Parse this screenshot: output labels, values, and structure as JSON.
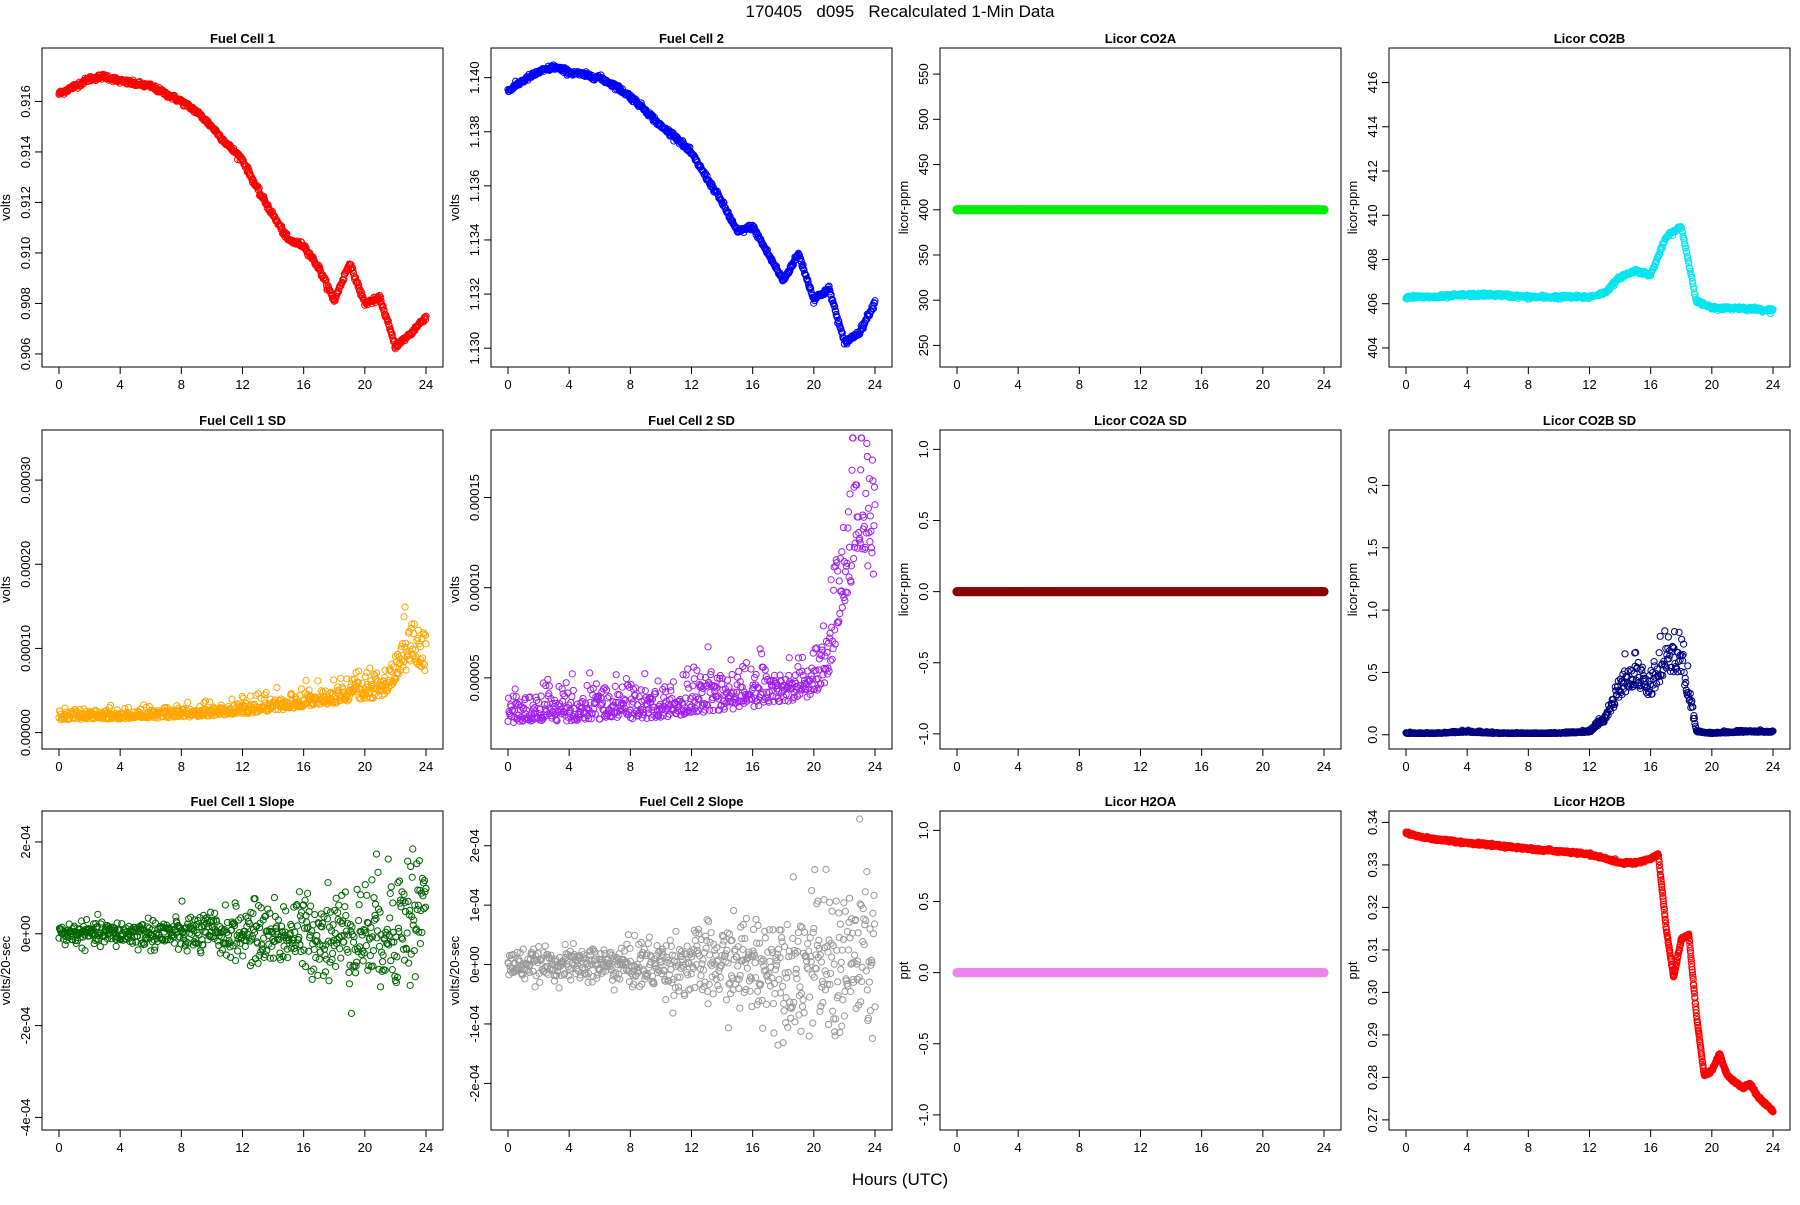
{
  "figure": {
    "title": "170405   d095   Recalculated 1-Min Data",
    "xlabel": "Hours (UTC)"
  },
  "chart_data": [
    {
      "type": "scatter",
      "title": "Fuel Cell 1",
      "xlabel": "",
      "ylabel": "volts",
      "xlim": [
        0,
        24
      ],
      "ylim": [
        0.9058,
        0.9178
      ],
      "xticks": [
        "0",
        "4",
        "8",
        "12",
        "16",
        "20",
        "24"
      ],
      "yticks": [
        "0.906",
        "0.908",
        "0.910",
        "0.912",
        "0.914",
        "0.916"
      ],
      "color": "#ff0000",
      "grid": false,
      "series": [
        {
          "x": [
            0,
            1,
            2,
            3,
            4,
            5,
            6,
            7,
            8,
            9,
            10,
            11,
            12,
            13,
            14,
            15,
            16,
            17,
            18,
            19,
            20,
            21,
            22,
            23,
            24
          ],
          "y": [
            0.9163,
            0.9166,
            0.9169,
            0.917,
            0.9168,
            0.9167,
            0.9166,
            0.9163,
            0.916,
            0.9156,
            0.915,
            0.9143,
            0.9137,
            0.9125,
            0.9115,
            0.9105,
            0.9103,
            0.9094,
            0.9081,
            0.9096,
            0.908,
            0.9082,
            0.9063,
            0.9068,
            0.9075
          ]
        }
      ]
    },
    {
      "type": "scatter",
      "title": "Fuel Cell 2",
      "xlabel": "",
      "ylabel": "volts",
      "xlim": [
        0,
        24
      ],
      "ylim": [
        1.1296,
        1.1408
      ],
      "xticks": [
        "0",
        "4",
        "8",
        "12",
        "16",
        "20",
        "24"
      ],
      "yticks": [
        "1.130",
        "1.132",
        "1.134",
        "1.136",
        "1.138",
        "1.140"
      ],
      "color": "#0000ff",
      "grid": false,
      "series": [
        {
          "x": [
            0,
            1,
            2,
            3,
            4,
            5,
            6,
            7,
            8,
            9,
            10,
            11,
            12,
            13,
            14,
            15,
            16,
            17,
            18,
            19,
            20,
            21,
            22,
            23,
            24
          ],
          "y": [
            1.1395,
            1.1399,
            1.1402,
            1.1404,
            1.1402,
            1.1401,
            1.14,
            1.1397,
            1.1393,
            1.1388,
            1.1382,
            1.1378,
            1.1372,
            1.1363,
            1.1354,
            1.1343,
            1.1345,
            1.1335,
            1.1325,
            1.1335,
            1.1318,
            1.1322,
            1.1302,
            1.1306,
            1.1317
          ]
        }
      ]
    },
    {
      "type": "scatter",
      "title": "Licor CO2A",
      "xlabel": "",
      "ylabel": "licor-ppm",
      "xlim": [
        0,
        24
      ],
      "ylim": [
        235,
        570
      ],
      "xticks": [
        "0",
        "4",
        "8",
        "12",
        "16",
        "20",
        "24"
      ],
      "yticks": [
        "250",
        "300",
        "350",
        "400",
        "450",
        "500",
        "550"
      ],
      "color": "#00ee00",
      "grid": false,
      "series": [
        {
          "x": [
            0,
            24
          ],
          "y": [
            400,
            400
          ]
        }
      ]
    },
    {
      "type": "scatter",
      "title": "Licor CO2B",
      "xlabel": "",
      "ylabel": "licor-ppm",
      "xlim": [
        0,
        24
      ],
      "ylim": [
        403.5,
        417.2
      ],
      "xticks": [
        "0",
        "4",
        "8",
        "12",
        "16",
        "20",
        "24"
      ],
      "yticks": [
        "404",
        "406",
        "408",
        "410",
        "412",
        "414",
        "416"
      ],
      "color": "#00e5ee",
      "grid": false,
      "series": [
        {
          "x": [
            0,
            2,
            4,
            6,
            8,
            10,
            12,
            13,
            14,
            15,
            16,
            17,
            18,
            19,
            20,
            22,
            24
          ],
          "y": [
            406.3,
            406.3,
            406.4,
            406.4,
            406.3,
            406.3,
            406.3,
            406.5,
            407.2,
            407.5,
            407.3,
            409.0,
            409.5,
            406.1,
            405.8,
            405.8,
            405.7
          ]
        }
      ]
    },
    {
      "type": "scatter",
      "title": "Fuel Cell 1 SD",
      "xlabel": "",
      "ylabel": "volts",
      "xlim": [
        0,
        24
      ],
      "ylim": [
        -1e-05,
        0.00035
      ],
      "xticks": [
        "0",
        "4",
        "8",
        "12",
        "16",
        "20",
        "24"
      ],
      "yticks": [
        "0.00000",
        "0.00010",
        "0.00020",
        "0.00030"
      ],
      "color": "#ffa500",
      "grid": false,
      "series": [
        {
          "x": [
            0,
            2,
            4,
            6,
            8,
            10,
            12,
            14,
            16,
            18,
            20,
            21,
            22,
            23,
            24
          ],
          "y": [
            1.5e-05,
            1.6e-05,
            1.6e-05,
            1.7e-05,
            1.8e-05,
            2e-05,
            2.2e-05,
            2.6e-05,
            3e-05,
            3.5e-05,
            4e-05,
            4e-05,
            6e-05,
            8e-05,
            7e-05
          ]
        }
      ]
    },
    {
      "type": "scatter",
      "title": "Fuel Cell 2 SD",
      "xlabel": "",
      "ylabel": "volts",
      "xlim": [
        0,
        24
      ],
      "ylim": [
        1.5e-05,
        0.000183
      ],
      "xticks": [
        "0",
        "4",
        "8",
        "12",
        "16",
        "20",
        "24"
      ],
      "yticks": [
        "0.00005",
        "0.00010",
        "0.00015"
      ],
      "color": "#a020f0",
      "grid": false,
      "series": [
        {
          "x": [
            0,
            2,
            4,
            6,
            8,
            10,
            12,
            14,
            16,
            18,
            20,
            21,
            22,
            23,
            24
          ],
          "y": [
            2.5e-05,
            2.6e-05,
            2.6e-05,
            2.7e-05,
            2.7e-05,
            2.8e-05,
            3e-05,
            3.2e-05,
            3.4e-05,
            3.6e-05,
            4e-05,
            5e-05,
            9e-05,
            0.00012,
            0.0001
          ]
        }
      ]
    },
    {
      "type": "scatter",
      "title": "Licor CO2A SD",
      "xlabel": "",
      "ylabel": "licor-ppm",
      "xlim": [
        0,
        24
      ],
      "ylim": [
        -1.05,
        1.08
      ],
      "xticks": [
        "0",
        "4",
        "8",
        "12",
        "16",
        "20",
        "24"
      ],
      "yticks": [
        "-1.0",
        "-0.5",
        "0.0",
        "0.5",
        "1.0"
      ],
      "color": "#8b0000",
      "grid": false,
      "series": [
        {
          "x": [
            0,
            24
          ],
          "y": [
            0,
            0
          ]
        }
      ]
    },
    {
      "type": "scatter",
      "title": "Licor CO2B SD",
      "xlabel": "",
      "ylabel": "licor-ppm",
      "xlim": [
        0,
        24
      ],
      "ylim": [
        -0.05,
        2.38
      ],
      "xticks": [
        "0",
        "4",
        "8",
        "12",
        "16",
        "20",
        "24"
      ],
      "yticks": [
        "0.0",
        "0.5",
        "1.0",
        "1.5",
        "2.0"
      ],
      "color": "#000080",
      "grid": false,
      "series": [
        {
          "x": [
            0,
            2,
            4,
            6,
            8,
            10,
            12,
            13,
            14,
            15,
            16,
            17,
            18,
            19,
            20,
            22,
            24
          ],
          "y": [
            0.01,
            0.01,
            0.02,
            0.01,
            0.01,
            0.01,
            0.02,
            0.1,
            0.3,
            0.4,
            0.3,
            0.5,
            0.5,
            0.02,
            0.01,
            0.02,
            0.02
          ]
        }
      ]
    },
    {
      "type": "scatter",
      "title": "Fuel Cell 1 Slope",
      "xlabel": "",
      "ylabel": "volts/20-sec",
      "xlim": [
        0,
        24
      ],
      "ylim": [
        -0.00041,
        0.00025
      ],
      "xticks": [
        "0",
        "4",
        "8",
        "12",
        "16",
        "20",
        "24"
      ],
      "yticks": [
        "-4e-04",
        "-2e-04",
        "0e+00",
        "2e-04"
      ],
      "color": "#006400",
      "grid": false,
      "series": [
        {
          "x": [
            0,
            4,
            8,
            12,
            16,
            20,
            22,
            24
          ],
          "y": [
            0,
            0,
            0,
            0,
            0,
            0,
            2e-05,
            6e-05
          ]
        }
      ]
    },
    {
      "type": "scatter",
      "title": "Fuel Cell 2 Slope",
      "xlabel": "",
      "ylabel": "volts/20-sec",
      "xlim": [
        0,
        24
      ],
      "ylim": [
        -0.000265,
        0.000245
      ],
      "xticks": [
        "0",
        "4",
        "8",
        "12",
        "16",
        "20",
        "24"
      ],
      "yticks": [
        "-2e-04",
        "-1e-04",
        "0e+00",
        "1e-04",
        "2e-04"
      ],
      "color": "#999999",
      "grid": false,
      "series": [
        {
          "x": [
            0,
            4,
            8,
            12,
            16,
            20,
            22,
            24
          ],
          "y": [
            0,
            0,
            0,
            0,
            0,
            0,
            0,
            2e-05
          ]
        }
      ]
    },
    {
      "type": "scatter",
      "title": "Licor H2OA",
      "xlabel": "",
      "ylabel": "ppt",
      "xlim": [
        0,
        24
      ],
      "ylim": [
        -1.05,
        1.08
      ],
      "xticks": [
        "0",
        "4",
        "8",
        "12",
        "16",
        "20",
        "24"
      ],
      "yticks": [
        "-1.0",
        "-0.5",
        "0.0",
        "0.5",
        "1.0"
      ],
      "color": "#ee82ee",
      "grid": false,
      "series": [
        {
          "x": [
            0,
            24
          ],
          "y": [
            0,
            0
          ]
        }
      ]
    },
    {
      "type": "scatter",
      "title": "Licor H2OB",
      "xlabel": "",
      "ylabel": "ppt",
      "xlim": [
        0,
        24
      ],
      "ylim": [
        0.2695,
        0.3408
      ],
      "xticks": [
        "0",
        "4",
        "8",
        "12",
        "16",
        "20",
        "24"
      ],
      "yticks": [
        "0.27",
        "0.28",
        "0.29",
        "0.30",
        "0.31",
        "0.32",
        "0.33",
        "0.34"
      ],
      "color": "#ff0000",
      "grid": false,
      "series": [
        {
          "x": [
            0,
            1,
            2,
            4,
            6,
            8,
            10,
            12,
            14,
            15,
            16,
            16.5,
            17,
            17.5,
            18,
            18.5,
            19,
            19.5,
            20,
            20.5,
            21,
            22,
            22.5,
            23,
            24
          ],
          "y": [
            0.3375,
            0.3365,
            0.336,
            0.3352,
            0.3345,
            0.3338,
            0.3332,
            0.3325,
            0.3305,
            0.3305,
            0.3315,
            0.3325,
            0.3155,
            0.3035,
            0.3125,
            0.3135,
            0.2945,
            0.2805,
            0.2815,
            0.2855,
            0.2805,
            0.2775,
            0.2785,
            0.2755,
            0.272
          ]
        }
      ]
    }
  ]
}
